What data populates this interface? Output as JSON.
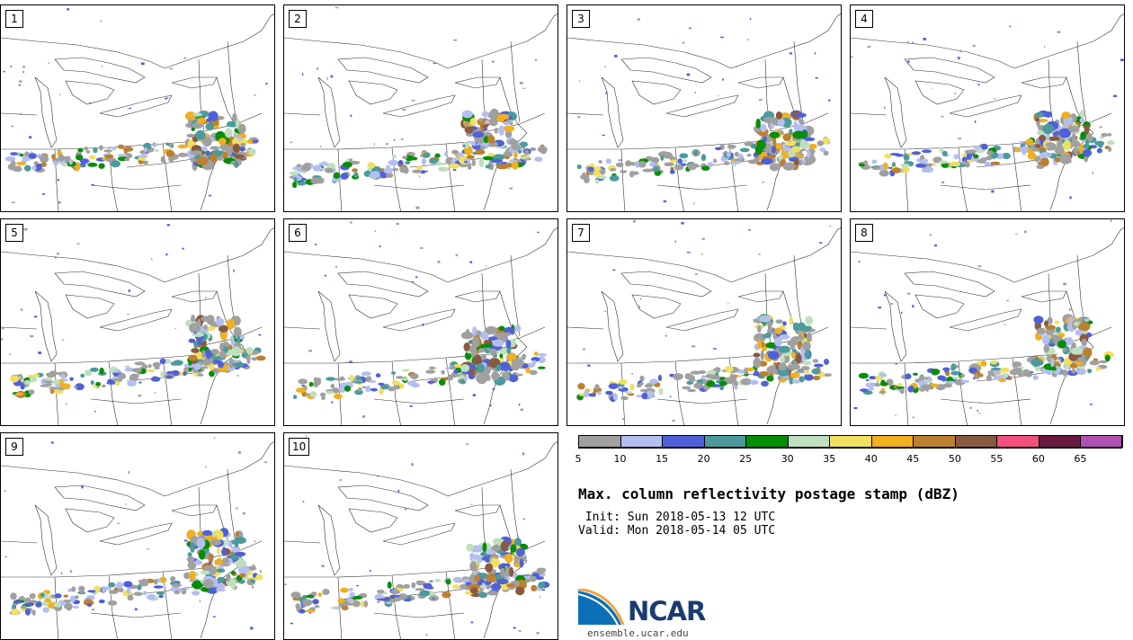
{
  "members": [
    "1",
    "2",
    "3",
    "4",
    "5",
    "6",
    "7",
    "8",
    "9",
    "10"
  ],
  "colorbar": {
    "colors": [
      "#a0a0a0",
      "#b4bff0",
      "#5060d8",
      "#4c9a9c",
      "#078e07",
      "#bfe0bf",
      "#f0e060",
      "#f0b020",
      "#bc8030",
      "#8a5a40",
      "#f25080",
      "#6a1a40",
      "#b050b0"
    ],
    "ticks": [
      "5",
      "10",
      "15",
      "20",
      "25",
      "30",
      "35",
      "40",
      "45",
      "50",
      "55",
      "60",
      "65"
    ]
  },
  "title": "Max. column reflectivity postage stamp (dBZ)",
  "init": " Init: Sun 2018-05-13 12 UTC",
  "valid": "Valid: Mon 2018-05-14 05 UTC",
  "logo": {
    "text": "NCAR",
    "url": "ensemble.ucar.edu"
  }
}
